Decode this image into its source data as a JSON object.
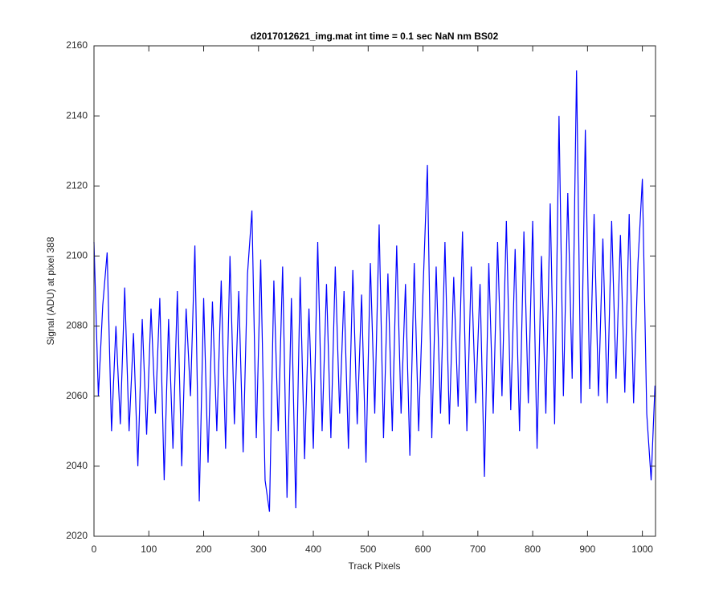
{
  "chart_data": {
    "type": "line",
    "title": "d2017012621_img.mat int time = 0.1 sec  NaN nm BS02",
    "x_label": "Track Pixels",
    "y_label": "Signal (ADU) at pixel 388",
    "x": [
      0,
      8,
      16,
      24,
      32,
      40,
      48,
      56,
      64,
      72,
      80,
      88,
      96,
      104,
      112,
      120,
      128,
      136,
      144,
      152,
      160,
      168,
      176,
      184,
      192,
      200,
      208,
      216,
      224,
      232,
      240,
      248,
      256,
      264,
      272,
      280,
      288,
      296,
      304,
      312,
      320,
      328,
      336,
      344,
      352,
      360,
      368,
      376,
      384,
      392,
      400,
      408,
      416,
      424,
      432,
      440,
      448,
      456,
      464,
      472,
      480,
      488,
      496,
      504,
      512,
      520,
      528,
      536,
      544,
      552,
      560,
      568,
      576,
      584,
      592,
      600,
      608,
      616,
      624,
      632,
      640,
      648,
      656,
      664,
      672,
      680,
      688,
      696,
      704,
      712,
      720,
      728,
      736,
      744,
      752,
      760,
      768,
      776,
      784,
      792,
      800,
      808,
      816,
      824,
      832,
      840,
      848,
      856,
      864,
      872,
      880,
      888,
      896,
      904,
      912,
      920,
      928,
      936,
      944,
      952,
      960,
      968,
      976,
      984,
      992,
      1000,
      1008,
      1016,
      1023
    ],
    "series": [
      {
        "name": "Signal",
        "color": "#0000ff",
        "values": [
          2104,
          2060,
          2086,
          2101,
          2050,
          2080,
          2052,
          2091,
          2050,
          2078,
          2040,
          2082,
          2049,
          2085,
          2055,
          2088,
          2036,
          2082,
          2045,
          2090,
          2040,
          2085,
          2060,
          2103,
          2030,
          2088,
          2041,
          2087,
          2050,
          2093,
          2045,
          2100,
          2052,
          2090,
          2044,
          2095,
          2113,
          2048,
          2099,
          2036,
          2027,
          2093,
          2050,
          2097,
          2031,
          2088,
          2028,
          2094,
          2042,
          2085,
          2045,
          2104,
          2050,
          2092,
          2048,
          2097,
          2055,
          2090,
          2045,
          2096,
          2052,
          2089,
          2041,
          2098,
          2055,
          2109,
          2048,
          2095,
          2050,
          2103,
          2055,
          2092,
          2043,
          2098,
          2050,
          2090,
          2126,
          2048,
          2097,
          2055,
          2104,
          2052,
          2094,
          2057,
          2107,
          2050,
          2097,
          2058,
          2092,
          2037,
          2098,
          2055,
          2104,
          2060,
          2110,
          2056,
          2102,
          2050,
          2107,
          2058,
          2110,
          2045,
          2100,
          2055,
          2115,
          2052,
          2140,
          2060,
          2118,
          2065,
          2153,
          2058,
          2136,
          2062,
          2112,
          2060,
          2105,
          2058,
          2110,
          2065,
          2106,
          2061,
          2112,
          2058,
          2098,
          2122,
          2055,
          2036,
          2063
        ]
      }
    ],
    "xlim": [
      0,
      1024
    ],
    "ylim": [
      2020,
      2160
    ],
    "xticks": [
      0,
      100,
      200,
      300,
      400,
      500,
      600,
      700,
      800,
      900,
      1000
    ],
    "yticks": [
      2020,
      2040,
      2060,
      2080,
      2100,
      2120,
      2140,
      2160
    ]
  }
}
